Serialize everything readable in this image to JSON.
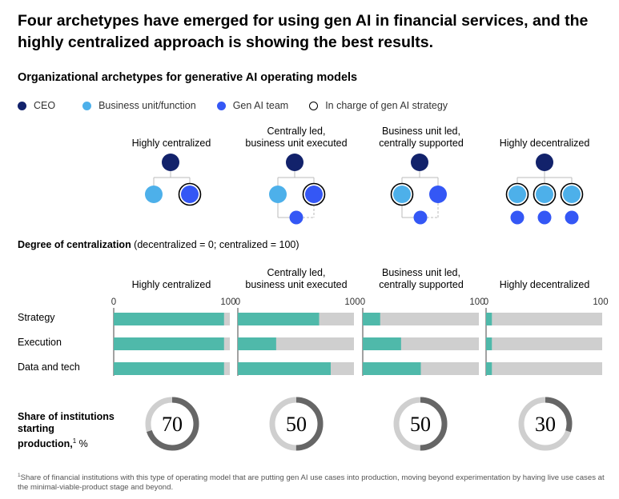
{
  "title": "Four archetypes have emerged for using gen AI in financial services, and the highly centralized approach is showing the best results.",
  "subtitle": "Organizational archetypes for generative AI operating models",
  "legend": [
    {
      "label": "CEO",
      "color": "#12226b"
    },
    {
      "label": "Business unit/function",
      "color": "#4db0ea"
    },
    {
      "label": "Gen AI team",
      "color": "#3457f5"
    },
    {
      "label": "In charge of gen AI strategy",
      "color": "#ffffff"
    }
  ],
  "archetypes": [
    {
      "label": "Highly centralized",
      "label2": ""
    },
    {
      "label": "Centrally led,",
      "label2": "business unit executed"
    },
    {
      "label": "Business unit led,",
      "label2": "centrally supported"
    },
    {
      "label": "Highly decentralized",
      "label2": ""
    }
  ],
  "section2": {
    "bold": "Degree of centralization",
    "rest": " (decentralized = 0; centralized = 100)"
  },
  "rows": [
    "Strategy",
    "Execution",
    "Data and tech"
  ],
  "share_label": {
    "line1": "Share of institutions",
    "line2": "starting",
    "line3": "production,",
    "sup": "1",
    "unit": " %"
  },
  "footnote": {
    "sup": "1",
    "text": "Share of financial institutions with this type of operating model that are putting gen AI use cases into production, moving beyond experimentation by having live use cases at the minimal-viable-product stage and beyond."
  },
  "colors": {
    "bar": "#4fb9aa",
    "track": "#cfcfcf",
    "donut_fill": "#666666",
    "donut_track": "#cfcfcf"
  },
  "chart_data": [
    {
      "type": "bar",
      "title": "Degree of centralization",
      "categories": [
        "Strategy",
        "Execution",
        "Data and tech"
      ],
      "xlim": [
        0,
        100
      ],
      "ticks": [
        "0",
        "100"
      ],
      "series": [
        {
          "name": "Highly centralized",
          "values": [
            95,
            95,
            95
          ]
        },
        {
          "name": "Centrally led, business unit executed",
          "values": [
            70,
            33,
            80
          ]
        },
        {
          "name": "Business unit led, centrally supported",
          "values": [
            15,
            33,
            50
          ]
        },
        {
          "name": "Highly decentralized",
          "values": [
            5,
            5,
            5
          ]
        }
      ]
    },
    {
      "type": "pie",
      "title": "Share of institutions starting production, %",
      "categories": [
        "Highly centralized",
        "Centrally led, business unit executed",
        "Business unit led, centrally supported",
        "Highly decentralized"
      ],
      "values": [
        70,
        50,
        50,
        30
      ],
      "labels": [
        "70",
        "50",
        "50",
        "30"
      ]
    }
  ]
}
